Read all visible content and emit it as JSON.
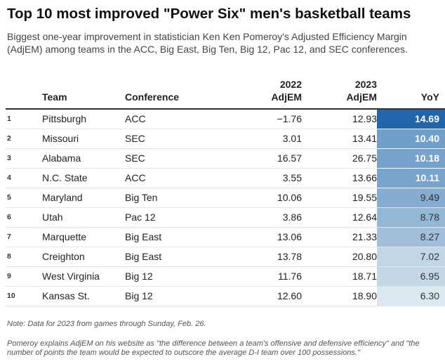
{
  "chart_data": {
    "type": "table",
    "title": "Top 10 most improved \"Power Six\" men's basketball teams",
    "subtitle": "Biggest one-year improvement in statistician Ken Ken Pomeroy's Adjusted Efficiency Margin (AdjEM) among teams in the ACC, Big East, Big Ten, Big 12, Pac 12, and SEC conferences.",
    "columns": {
      "rank": "",
      "team": "Team",
      "conference": "Conference",
      "adjem_2022_line1": "2022",
      "adjem_2022_line2": "AdjEM",
      "adjem_2023_line1": "2023",
      "adjem_2023_line2": "AdjEM",
      "yoy": "YoY"
    },
    "rows": [
      {
        "rank": "1",
        "team": "Pittsburgh",
        "conference": "ACC",
        "adjem_2022": "−1.76",
        "adjem_2023": "12.93",
        "yoy": "14.69",
        "yoy_value": 14.69
      },
      {
        "rank": "2",
        "team": "Missouri",
        "conference": "SEC",
        "adjem_2022": "3.01",
        "adjem_2023": "13.41",
        "yoy": "10.40",
        "yoy_value": 10.4
      },
      {
        "rank": "3",
        "team": "Alabama",
        "conference": "SEC",
        "adjem_2022": "16.57",
        "adjem_2023": "26.75",
        "yoy": "10.18",
        "yoy_value": 10.18
      },
      {
        "rank": "4",
        "team": "N.C. State",
        "conference": "ACC",
        "adjem_2022": "3.55",
        "adjem_2023": "13.66",
        "yoy": "10.11",
        "yoy_value": 10.11
      },
      {
        "rank": "5",
        "team": "Maryland",
        "conference": "Big Ten",
        "adjem_2022": "10.06",
        "adjem_2023": "19.55",
        "yoy": "9.49",
        "yoy_value": 9.49
      },
      {
        "rank": "6",
        "team": "Utah",
        "conference": "Pac 12",
        "adjem_2022": "3.86",
        "adjem_2023": "12.64",
        "yoy": "8.78",
        "yoy_value": 8.78
      },
      {
        "rank": "7",
        "team": "Marquette",
        "conference": "Big East",
        "adjem_2022": "13.06",
        "adjem_2023": "21.33",
        "yoy": "8.27",
        "yoy_value": 8.27
      },
      {
        "rank": "8",
        "team": "Creighton",
        "conference": "Big East",
        "adjem_2022": "13.78",
        "adjem_2023": "20.80",
        "yoy": "7.02",
        "yoy_value": 7.02
      },
      {
        "rank": "9",
        "team": "West Virginia",
        "conference": "Big 12",
        "adjem_2022": "11.76",
        "adjem_2023": "18.71",
        "yoy": "6.95",
        "yoy_value": 6.95
      },
      {
        "rank": "10",
        "team": "Kansas St.",
        "conference": "Big 12",
        "adjem_2022": "12.60",
        "adjem_2023": "18.90",
        "yoy": "6.30",
        "yoy_value": 6.3
      }
    ],
    "color_scale": {
      "min_value": 6.3,
      "max_value": 14.69,
      "low_color": "#dbe8f0",
      "high_color": "#2166ac"
    }
  },
  "footer": {
    "note": "Note: Data for 2023 from games through Sunday, Feb. 26.",
    "source": "Pomeroy explains AdjEM on his website as \"the difference between a team's offensive and defensive efficiency\" and \"the number of points the team would be expected to outscore the average D-I team over 100 possessions.\""
  }
}
